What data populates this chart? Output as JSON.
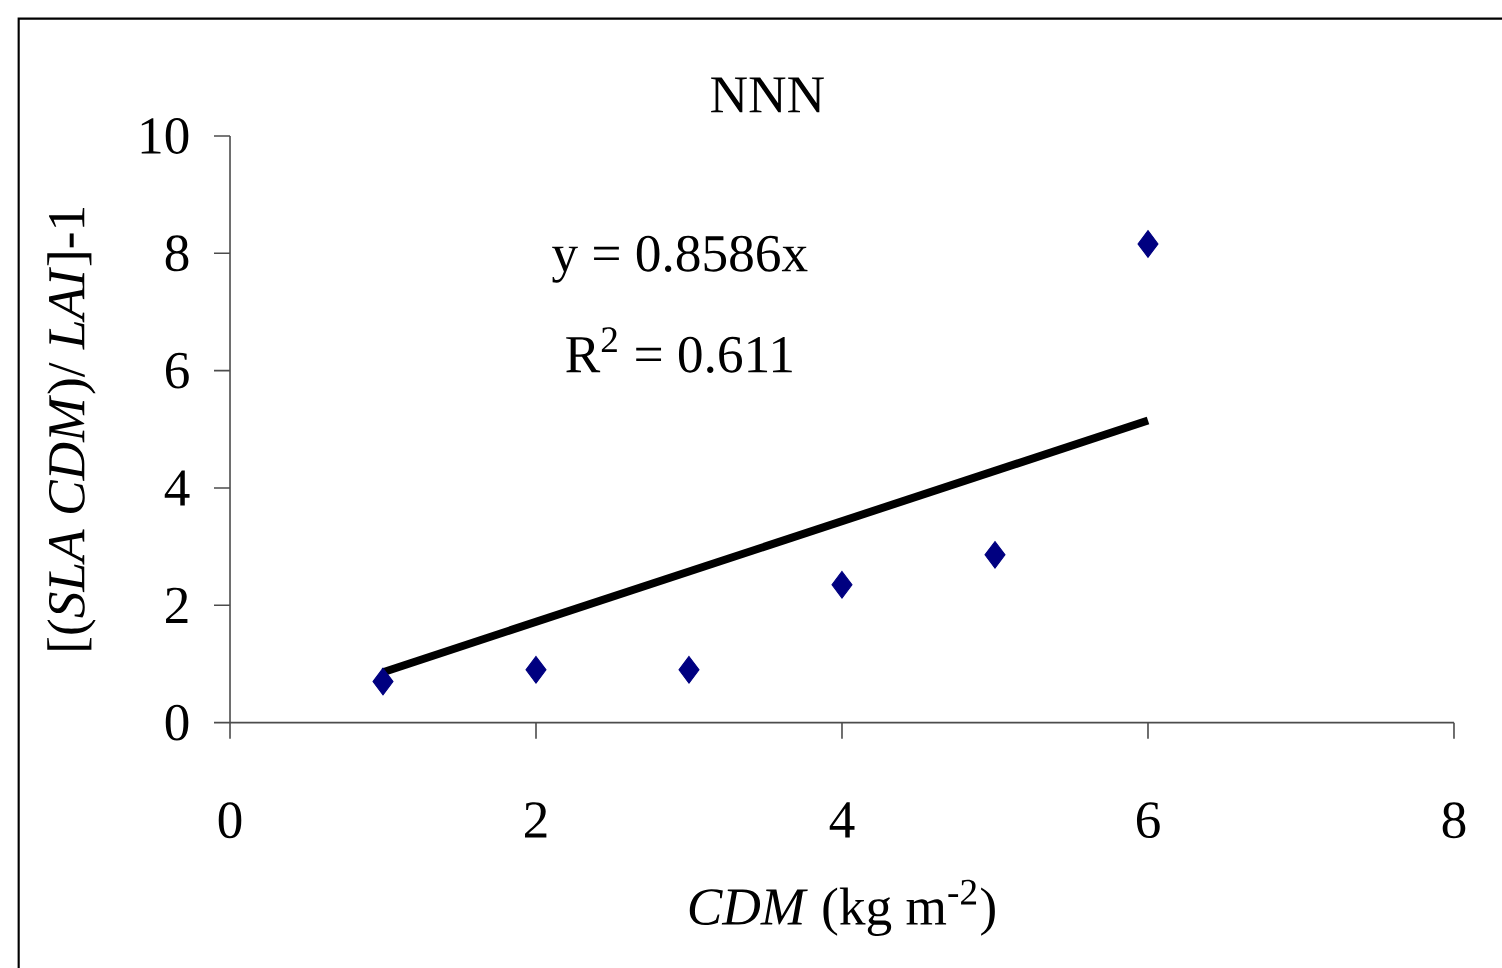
{
  "chart_data": {
    "type": "scatter",
    "title": "NNN",
    "xlabel": "*CDM*  (kg m$^{-2}$)",
    "ylabel": "[(*SLA CDM*)/ *LAI*]-1",
    "annotations": [
      "y = 0.8586x",
      "R$^{2}$ = 0.611"
    ],
    "xlim": [
      0,
      8
    ],
    "xticks": [
      0,
      2,
      4,
      6,
      8
    ],
    "ylim": [
      0,
      10
    ],
    "yticks": [
      0,
      2,
      4,
      6,
      8,
      10
    ],
    "grid": false,
    "series": [
      {
        "marker": "diamond",
        "color": "#000080",
        "x": [
          1,
          2,
          3,
          4,
          5,
          6
        ],
        "values": [
          0.7,
          0.9,
          0.9,
          2.35,
          2.86,
          8.16
        ]
      },
      {
        "type": "line",
        "marker": "none",
        "color": "#000000",
        "line_style": "solid",
        "x": [
          1,
          6
        ],
        "values": [
          0.86,
          5.15
        ]
      }
    ]
  }
}
